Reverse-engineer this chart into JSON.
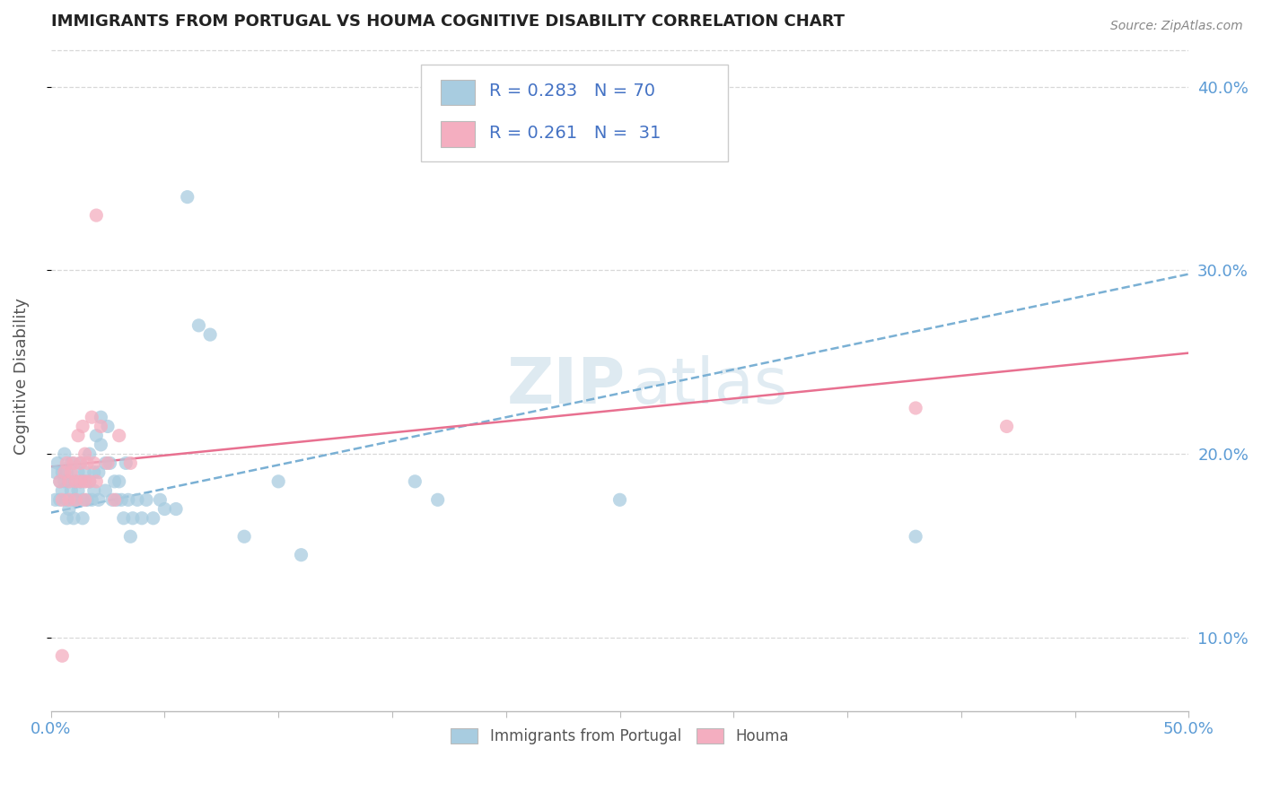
{
  "title": "IMMIGRANTS FROM PORTUGAL VS HOUMA COGNITIVE DISABILITY CORRELATION CHART",
  "source": "Source: ZipAtlas.com",
  "ylabel": "Cognitive Disability",
  "xmin": 0.0,
  "xmax": 0.5,
  "ymin": 0.06,
  "ymax": 0.425,
  "yticks": [
    0.1,
    0.2,
    0.3,
    0.4
  ],
  "ytick_labels": [
    "10.0%",
    "20.0%",
    "30.0%",
    "40.0%"
  ],
  "legend_r1": "R = 0.283",
  "legend_n1": "N = 70",
  "legend_r2": "R = 0.261",
  "legend_n2": "N =  31",
  "color_blue": "#a8cce0",
  "color_pink": "#f4aec0",
  "color_blue_line": "#7ab0d4",
  "color_pink_line": "#e87090",
  "watermark_zip": "ZIP",
  "watermark_atlas": "atlas",
  "blue_points": [
    [
      0.002,
      0.175
    ],
    [
      0.002,
      0.19
    ],
    [
      0.003,
      0.195
    ],
    [
      0.004,
      0.185
    ],
    [
      0.004,
      0.175
    ],
    [
      0.005,
      0.19
    ],
    [
      0.005,
      0.18
    ],
    [
      0.006,
      0.2
    ],
    [
      0.006,
      0.185
    ],
    [
      0.007,
      0.175
    ],
    [
      0.007,
      0.165
    ],
    [
      0.007,
      0.19
    ],
    [
      0.008,
      0.185
    ],
    [
      0.008,
      0.17
    ],
    [
      0.009,
      0.195
    ],
    [
      0.009,
      0.18
    ],
    [
      0.01,
      0.175
    ],
    [
      0.01,
      0.165
    ],
    [
      0.011,
      0.185
    ],
    [
      0.011,
      0.175
    ],
    [
      0.012,
      0.19
    ],
    [
      0.012,
      0.18
    ],
    [
      0.013,
      0.195
    ],
    [
      0.013,
      0.185
    ],
    [
      0.014,
      0.175
    ],
    [
      0.014,
      0.165
    ],
    [
      0.015,
      0.185
    ],
    [
      0.015,
      0.19
    ],
    [
      0.016,
      0.175
    ],
    [
      0.017,
      0.2
    ],
    [
      0.017,
      0.185
    ],
    [
      0.018,
      0.175
    ],
    [
      0.019,
      0.19
    ],
    [
      0.019,
      0.18
    ],
    [
      0.02,
      0.21
    ],
    [
      0.021,
      0.19
    ],
    [
      0.021,
      0.175
    ],
    [
      0.022,
      0.22
    ],
    [
      0.022,
      0.205
    ],
    [
      0.024,
      0.195
    ],
    [
      0.024,
      0.18
    ],
    [
      0.025,
      0.215
    ],
    [
      0.026,
      0.195
    ],
    [
      0.027,
      0.175
    ],
    [
      0.028,
      0.185
    ],
    [
      0.029,
      0.175
    ],
    [
      0.03,
      0.185
    ],
    [
      0.031,
      0.175
    ],
    [
      0.032,
      0.165
    ],
    [
      0.033,
      0.195
    ],
    [
      0.034,
      0.175
    ],
    [
      0.035,
      0.155
    ],
    [
      0.036,
      0.165
    ],
    [
      0.038,
      0.175
    ],
    [
      0.04,
      0.165
    ],
    [
      0.042,
      0.175
    ],
    [
      0.045,
      0.165
    ],
    [
      0.048,
      0.175
    ],
    [
      0.05,
      0.17
    ],
    [
      0.055,
      0.17
    ],
    [
      0.06,
      0.34
    ],
    [
      0.065,
      0.27
    ],
    [
      0.07,
      0.265
    ],
    [
      0.085,
      0.155
    ],
    [
      0.1,
      0.185
    ],
    [
      0.11,
      0.145
    ],
    [
      0.16,
      0.185
    ],
    [
      0.17,
      0.175
    ],
    [
      0.25,
      0.175
    ],
    [
      0.38,
      0.155
    ]
  ],
  "pink_points": [
    [
      0.004,
      0.185
    ],
    [
      0.005,
      0.175
    ],
    [
      0.006,
      0.19
    ],
    [
      0.007,
      0.195
    ],
    [
      0.008,
      0.185
    ],
    [
      0.008,
      0.175
    ],
    [
      0.009,
      0.19
    ],
    [
      0.01,
      0.195
    ],
    [
      0.011,
      0.185
    ],
    [
      0.011,
      0.175
    ],
    [
      0.012,
      0.21
    ],
    [
      0.013,
      0.195
    ],
    [
      0.013,
      0.185
    ],
    [
      0.014,
      0.215
    ],
    [
      0.015,
      0.2
    ],
    [
      0.015,
      0.185
    ],
    [
      0.016,
      0.195
    ],
    [
      0.017,
      0.185
    ],
    [
      0.018,
      0.22
    ],
    [
      0.019,
      0.195
    ],
    [
      0.02,
      0.33
    ],
    [
      0.022,
      0.215
    ],
    [
      0.025,
      0.195
    ],
    [
      0.028,
      0.175
    ],
    [
      0.03,
      0.21
    ],
    [
      0.035,
      0.195
    ],
    [
      0.005,
      0.09
    ],
    [
      0.015,
      0.175
    ],
    [
      0.02,
      0.185
    ],
    [
      0.38,
      0.225
    ],
    [
      0.42,
      0.215
    ]
  ],
  "blue_trendline_x": [
    0.0,
    0.5
  ],
  "blue_trendline_y": [
    0.168,
    0.298
  ],
  "pink_trendline_x": [
    0.0,
    0.5
  ],
  "pink_trendline_y": [
    0.193,
    0.255
  ]
}
